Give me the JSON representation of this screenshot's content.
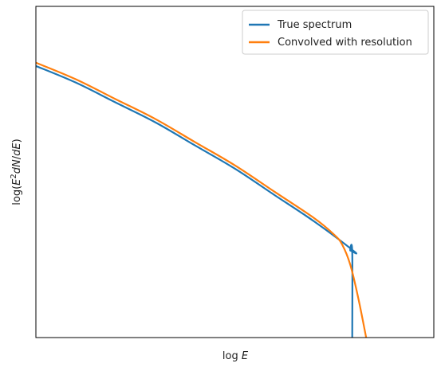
{
  "chart_data": {
    "type": "line",
    "xlabel": "log E",
    "ylabel": "log(E²dN/dE)",
    "xlim": [
      0,
      1
    ],
    "ylim": [
      0,
      1
    ],
    "grid": false,
    "ticks": false,
    "legend_position": "top-right",
    "series": [
      {
        "name": "True spectrum",
        "color": "#1f77b4",
        "x": [
          0.0,
          0.1,
          0.2,
          0.3,
          0.4,
          0.5,
          0.6,
          0.7,
          0.8,
          0.79,
          0.795,
          0.795
        ],
        "y": [
          0.82,
          0.77,
          0.71,
          0.65,
          0.58,
          0.51,
          0.43,
          0.35,
          0.26,
          0.263,
          0.258,
          0.0
        ]
      },
      {
        "name": "Convolved with resolution",
        "color": "#ff7f0e",
        "x": [
          0.0,
          0.1,
          0.2,
          0.3,
          0.4,
          0.5,
          0.6,
          0.7,
          0.75,
          0.77,
          0.79,
          0.81,
          0.83
        ],
        "y": [
          0.83,
          0.78,
          0.72,
          0.66,
          0.59,
          0.52,
          0.44,
          0.36,
          0.31,
          0.28,
          0.22,
          0.12,
          0.0
        ]
      }
    ]
  }
}
